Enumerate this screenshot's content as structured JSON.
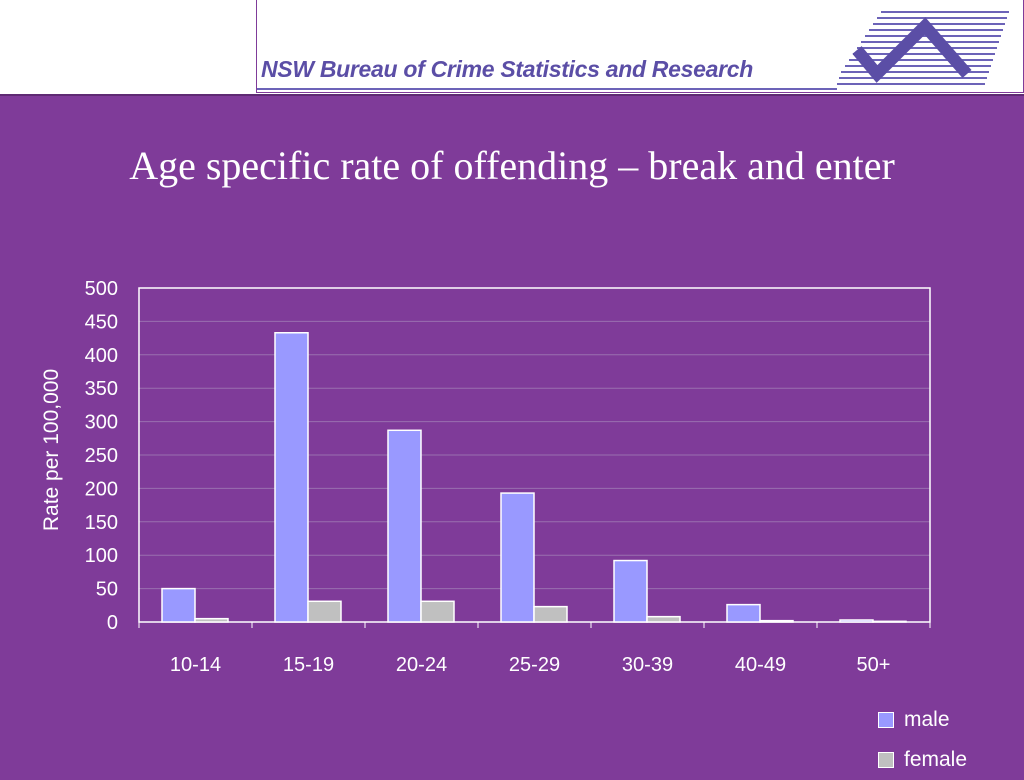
{
  "header": {
    "org_name": "NSW Bureau of Crime Statistics and Research",
    "logo_icon": "bocsar-check-logo-icon"
  },
  "page": {
    "title": "Age specific rate of offending – break and enter"
  },
  "colors": {
    "background": "#7f3b99",
    "male": "#9999ff",
    "female": "#c0c0c0"
  },
  "chart_data": {
    "type": "bar",
    "title": "",
    "xlabel": "",
    "ylabel": "Rate per 100,000",
    "ylim": [
      0,
      500
    ],
    "yticks": [
      0,
      50,
      100,
      150,
      200,
      250,
      300,
      350,
      400,
      450,
      500
    ],
    "grid": true,
    "legend": "bottom-right",
    "categories": [
      "10-14",
      "15-19",
      "20-24",
      "25-29",
      "30-39",
      "40-49",
      "50+"
    ],
    "series": [
      {
        "name": "male",
        "values": [
          50,
          433,
          287,
          193,
          92,
          26,
          3
        ],
        "color": "#9999ff"
      },
      {
        "name": "female",
        "values": [
          5,
          31,
          31,
          23,
          8,
          2,
          1
        ],
        "color": "#c0c0c0"
      }
    ]
  }
}
